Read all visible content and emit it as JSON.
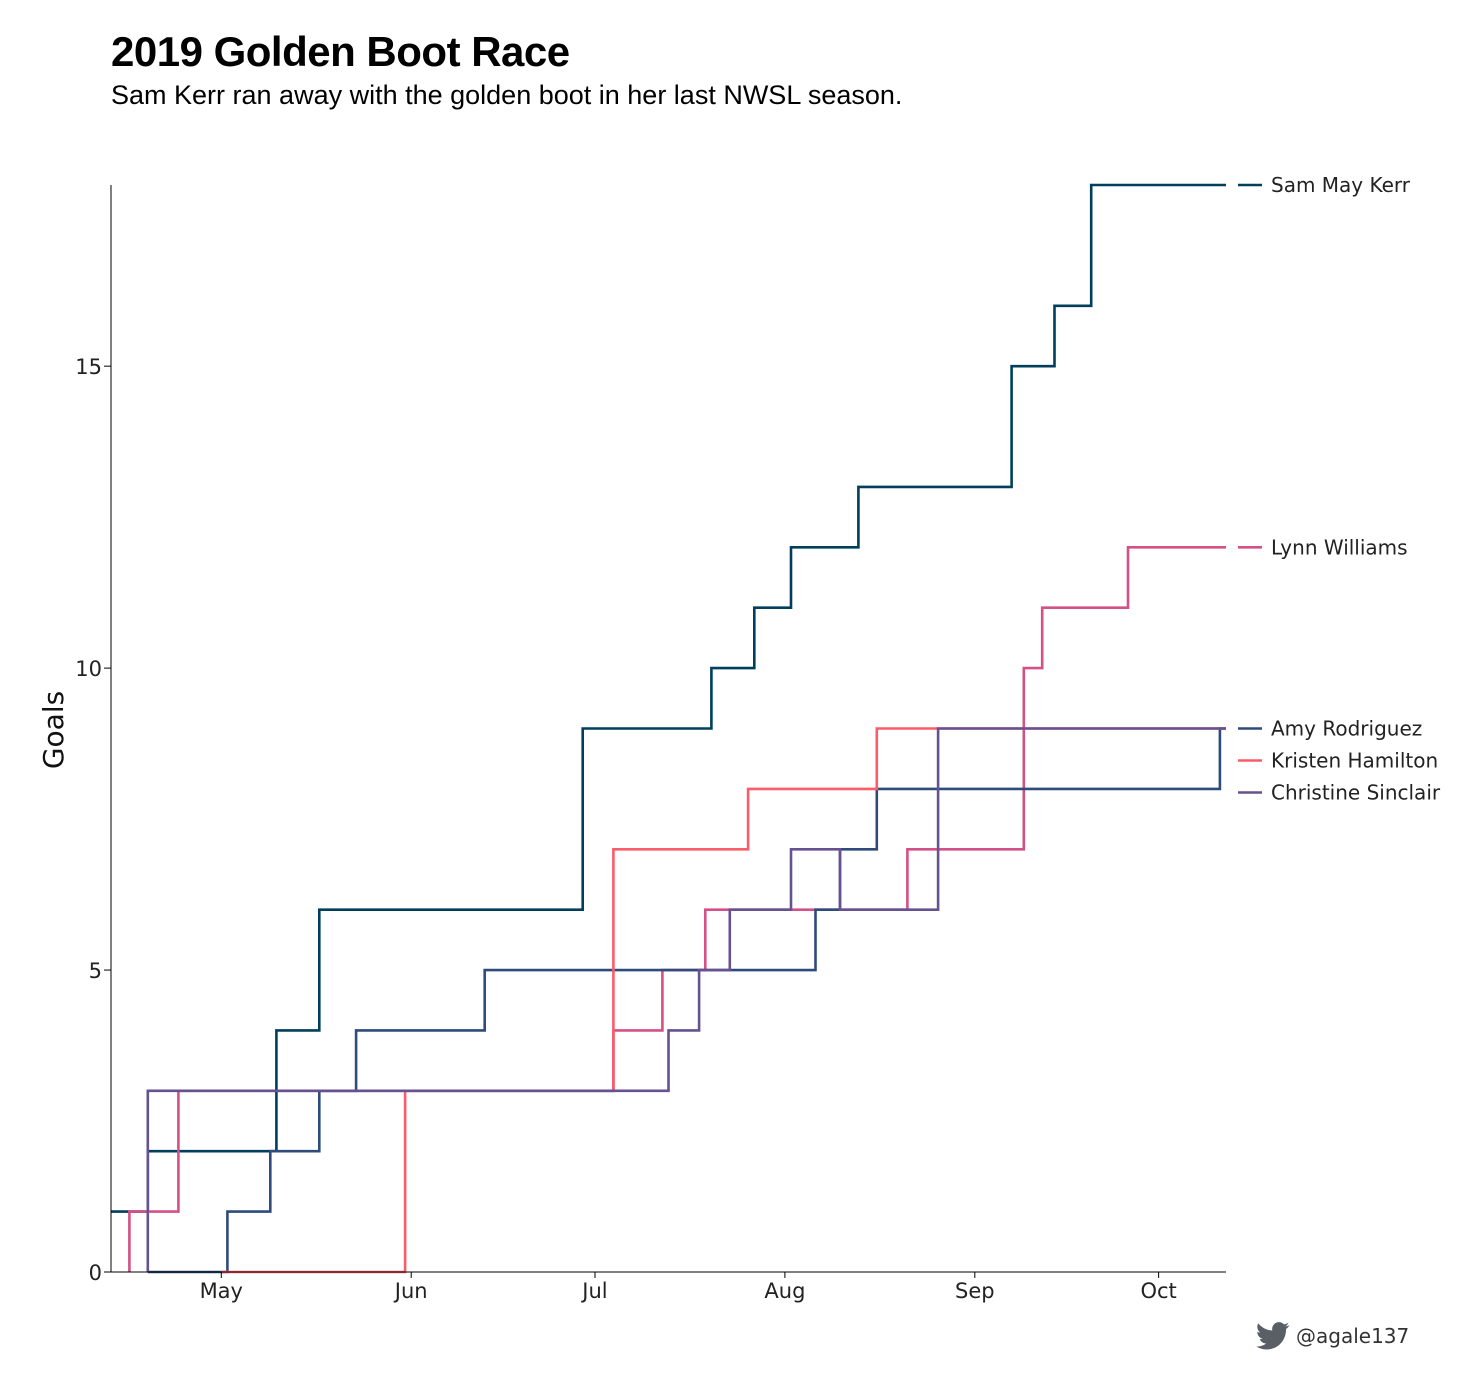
{
  "chart_data": {
    "type": "line",
    "title": "2019 Golden Boot Race",
    "subtitle": "Sam Kerr ran away with the golden boot in her last NWSL season.",
    "ylabel": "Goals",
    "xlabel": "",
    "x_ticks": [
      {
        "date": "2019-05-01",
        "label": "May"
      },
      {
        "date": "2019-06-01",
        "label": "Jun"
      },
      {
        "date": "2019-07-01",
        "label": "Jul"
      },
      {
        "date": "2019-08-01",
        "label": "Aug"
      },
      {
        "date": "2019-09-01",
        "label": "Sep"
      },
      {
        "date": "2019-10-01",
        "label": "Oct"
      }
    ],
    "y_ticks": [
      0,
      5,
      10,
      15
    ],
    "xlim": [
      "2019-04-13",
      "2019-10-12"
    ],
    "ylim": [
      0,
      18
    ],
    "grid": false,
    "step": "post",
    "series": [
      {
        "name": "Sam May Kerr",
        "color": "#003f5c",
        "points": [
          [
            "2019-04-13",
            1
          ],
          [
            "2019-04-19",
            2
          ],
          [
            "2019-05-10",
            4
          ],
          [
            "2019-05-17",
            6
          ],
          [
            "2019-06-29",
            9
          ],
          [
            "2019-07-20",
            10
          ],
          [
            "2019-07-27",
            11
          ],
          [
            "2019-08-02",
            12
          ],
          [
            "2019-08-13",
            13
          ],
          [
            "2019-09-07",
            15
          ],
          [
            "2019-09-14",
            16
          ],
          [
            "2019-09-20",
            18
          ],
          [
            "2019-10-12",
            18
          ]
        ]
      },
      {
        "name": "Lynn Williams",
        "color": "#d45087",
        "points": [
          [
            "2019-04-16",
            0
          ],
          [
            "2019-04-16",
            1
          ],
          [
            "2019-04-24",
            2
          ],
          [
            "2019-04-24",
            3
          ],
          [
            "2019-07-04",
            3
          ],
          [
            "2019-07-04",
            4
          ],
          [
            "2019-07-12",
            5
          ],
          [
            "2019-07-19",
            6
          ],
          [
            "2019-08-21",
            7
          ],
          [
            "2019-09-09",
            10
          ],
          [
            "2019-09-12",
            11
          ],
          [
            "2019-09-26",
            12
          ],
          [
            "2019-10-12",
            12
          ]
        ]
      },
      {
        "name": "Amy Rodriguez",
        "color": "#2f4b7c",
        "points": [
          [
            "2019-04-19",
            0
          ],
          [
            "2019-05-02",
            1
          ],
          [
            "2019-05-09",
            2
          ],
          [
            "2019-05-17",
            3
          ],
          [
            "2019-05-23",
            4
          ],
          [
            "2019-06-13",
            5
          ],
          [
            "2019-07-23",
            5
          ],
          [
            "2019-08-06",
            6
          ],
          [
            "2019-08-10",
            7
          ],
          [
            "2019-08-16",
            8
          ],
          [
            "2019-10-11",
            8
          ],
          [
            "2019-10-11",
            9
          ],
          [
            "2019-10-12",
            9
          ]
        ]
      },
      {
        "name": "Kristen Hamilton",
        "color": "#f95d6a",
        "points": [
          [
            "2019-05-01",
            0
          ],
          [
            "2019-05-31",
            0
          ],
          [
            "2019-05-31",
            3
          ],
          [
            "2019-07-04",
            7
          ],
          [
            "2019-07-26",
            8
          ],
          [
            "2019-08-16",
            8
          ],
          [
            "2019-08-16",
            9
          ],
          [
            "2019-10-12",
            9
          ]
        ]
      },
      {
        "name": "Christine Sinclair",
        "color": "#665191",
        "points": [
          [
            "2019-04-19",
            0
          ],
          [
            "2019-04-19",
            3
          ],
          [
            "2019-07-04",
            3
          ],
          [
            "2019-07-13",
            4
          ],
          [
            "2019-07-18",
            5
          ],
          [
            "2019-07-23",
            6
          ],
          [
            "2019-08-02",
            7
          ],
          [
            "2019-08-10",
            6
          ],
          [
            "2019-08-26",
            9
          ],
          [
            "2019-10-12",
            9
          ]
        ]
      }
    ]
  },
  "legend": {
    "entries": [
      {
        "label": "Sam May Kerr",
        "color": "#003f5c",
        "value": 18
      },
      {
        "label": "Lynn Williams",
        "color": "#d45087",
        "value": 12
      },
      {
        "label": "Amy Rodriguez",
        "color": "#2f4b7c",
        "value": 9
      },
      {
        "label": "Kristen Hamilton",
        "color": "#f95d6a",
        "value": 8.47
      },
      {
        "label": "Christine Sinclair",
        "color": "#665191",
        "value": 7.94
      }
    ]
  },
  "credit": {
    "icon": "twitter-bird-icon",
    "handle": "@agale137",
    "color": "#5a5f66"
  }
}
